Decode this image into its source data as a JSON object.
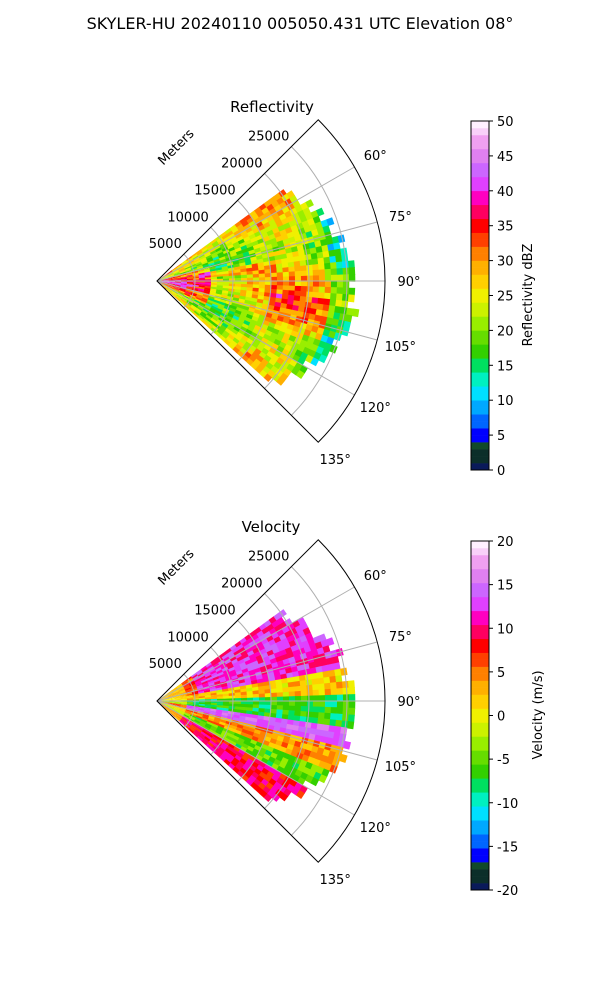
{
  "figure_title": "SKYLER-HU  20240110  005050.431 UTC Elevation 08°",
  "chart_data": [
    {
      "type": "heatmap",
      "subtype": "polar-sector",
      "title": "Reflectivity",
      "range_label": "Meters",
      "range_ticks": [
        5000,
        10000,
        15000,
        20000,
        25000
      ],
      "range_max": 30000,
      "azimuth_ticks": [
        "60°",
        "75°",
        "90°",
        "105°",
        "120°",
        "135°"
      ],
      "azimuth_range": [
        45,
        135
      ],
      "data_coverage": {
        "description_min_azimuth": 54,
        "description_max_azimuth": 131,
        "max_range": 25000
      },
      "colorbar": {
        "label": "Reflectivity dBZ",
        "min": 0,
        "max": 50,
        "ticks": [
          0,
          5,
          10,
          15,
          20,
          25,
          30,
          35,
          40,
          45,
          50
        ]
      },
      "dominant_values": "mostly 20–30 dBZ with embedded 35–45 dBZ cores near the radar and along 80°–110°"
    },
    {
      "type": "heatmap",
      "subtype": "polar-sector",
      "title": "Velocity",
      "range_label": "Meters",
      "range_ticks": [
        5000,
        10000,
        15000,
        20000,
        25000
      ],
      "range_max": 30000,
      "azimuth_ticks": [
        "60°",
        "75°",
        "90°",
        "105°",
        "120°",
        "135°"
      ],
      "azimuth_range": [
        45,
        135
      ],
      "colorbar": {
        "label": "Velocity (m/s)",
        "min": -20,
        "max": 20,
        "ticks": [
          -20,
          -15,
          -10,
          -5,
          0,
          5,
          10,
          15,
          20
        ]
      },
      "dominant_values": "positive 10–17 m/s toward north sector, -5 to -10 m/s band near 85°–95°, positive 5–15 m/s to the southeast"
    }
  ],
  "colors": {
    "frame": "#000000",
    "grid": "#b0b0b0"
  }
}
